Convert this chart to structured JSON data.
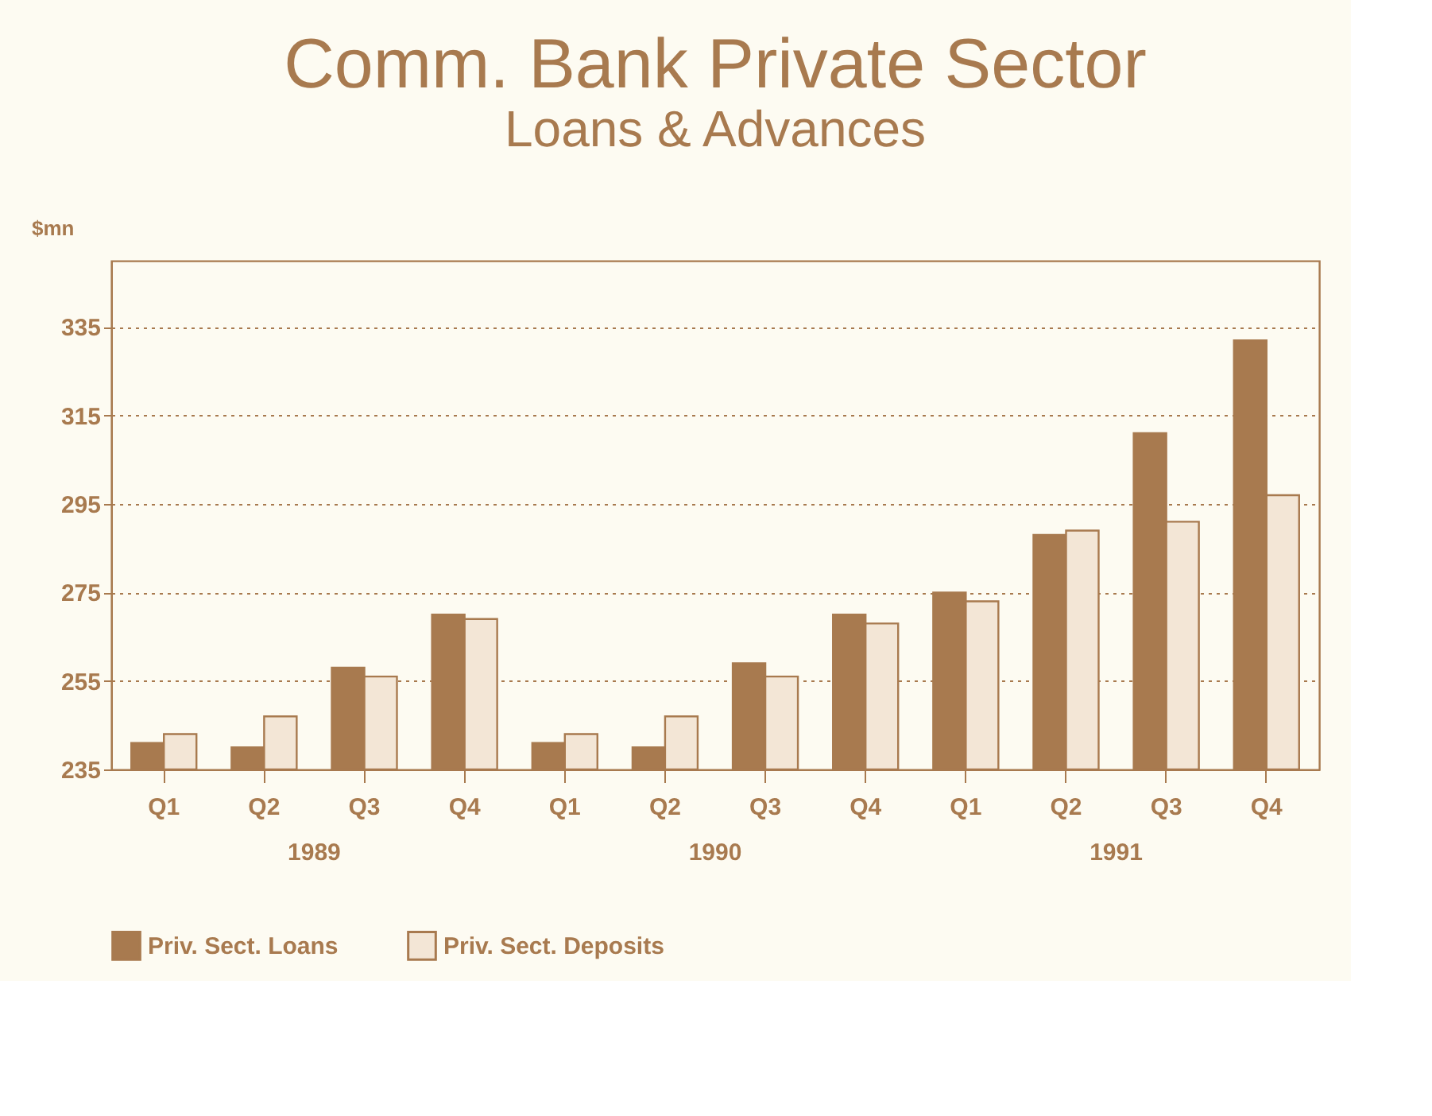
{
  "chart_data": {
    "type": "bar",
    "title": "Comm. Bank Private Sector",
    "subtitle": "Loans & Advances",
    "ylabel": "$mn",
    "categories": [
      "Q1",
      "Q2",
      "Q3",
      "Q4",
      "Q1",
      "Q2",
      "Q3",
      "Q4",
      "Q1",
      "Q2",
      "Q3",
      "Q4"
    ],
    "annotations": [
      "1989",
      "1990",
      "1991"
    ],
    "series": [
      {
        "name": "Priv. Sect. Loans",
        "color": "#a87a4f",
        "values": [
          241,
          240,
          258,
          270,
          241,
          240,
          259,
          270,
          275,
          288,
          311,
          332
        ]
      },
      {
        "name": "Priv. Sect. Deposits",
        "color": "#f3e6d6",
        "values": [
          243,
          247,
          256,
          269,
          243,
          247,
          256,
          268,
          273,
          289,
          291,
          297
        ]
      }
    ],
    "ylim": [
      235,
      350
    ],
    "yticks": [
      235,
      255,
      275,
      295,
      315,
      335
    ],
    "grid": "y",
    "legend": "bottom"
  }
}
